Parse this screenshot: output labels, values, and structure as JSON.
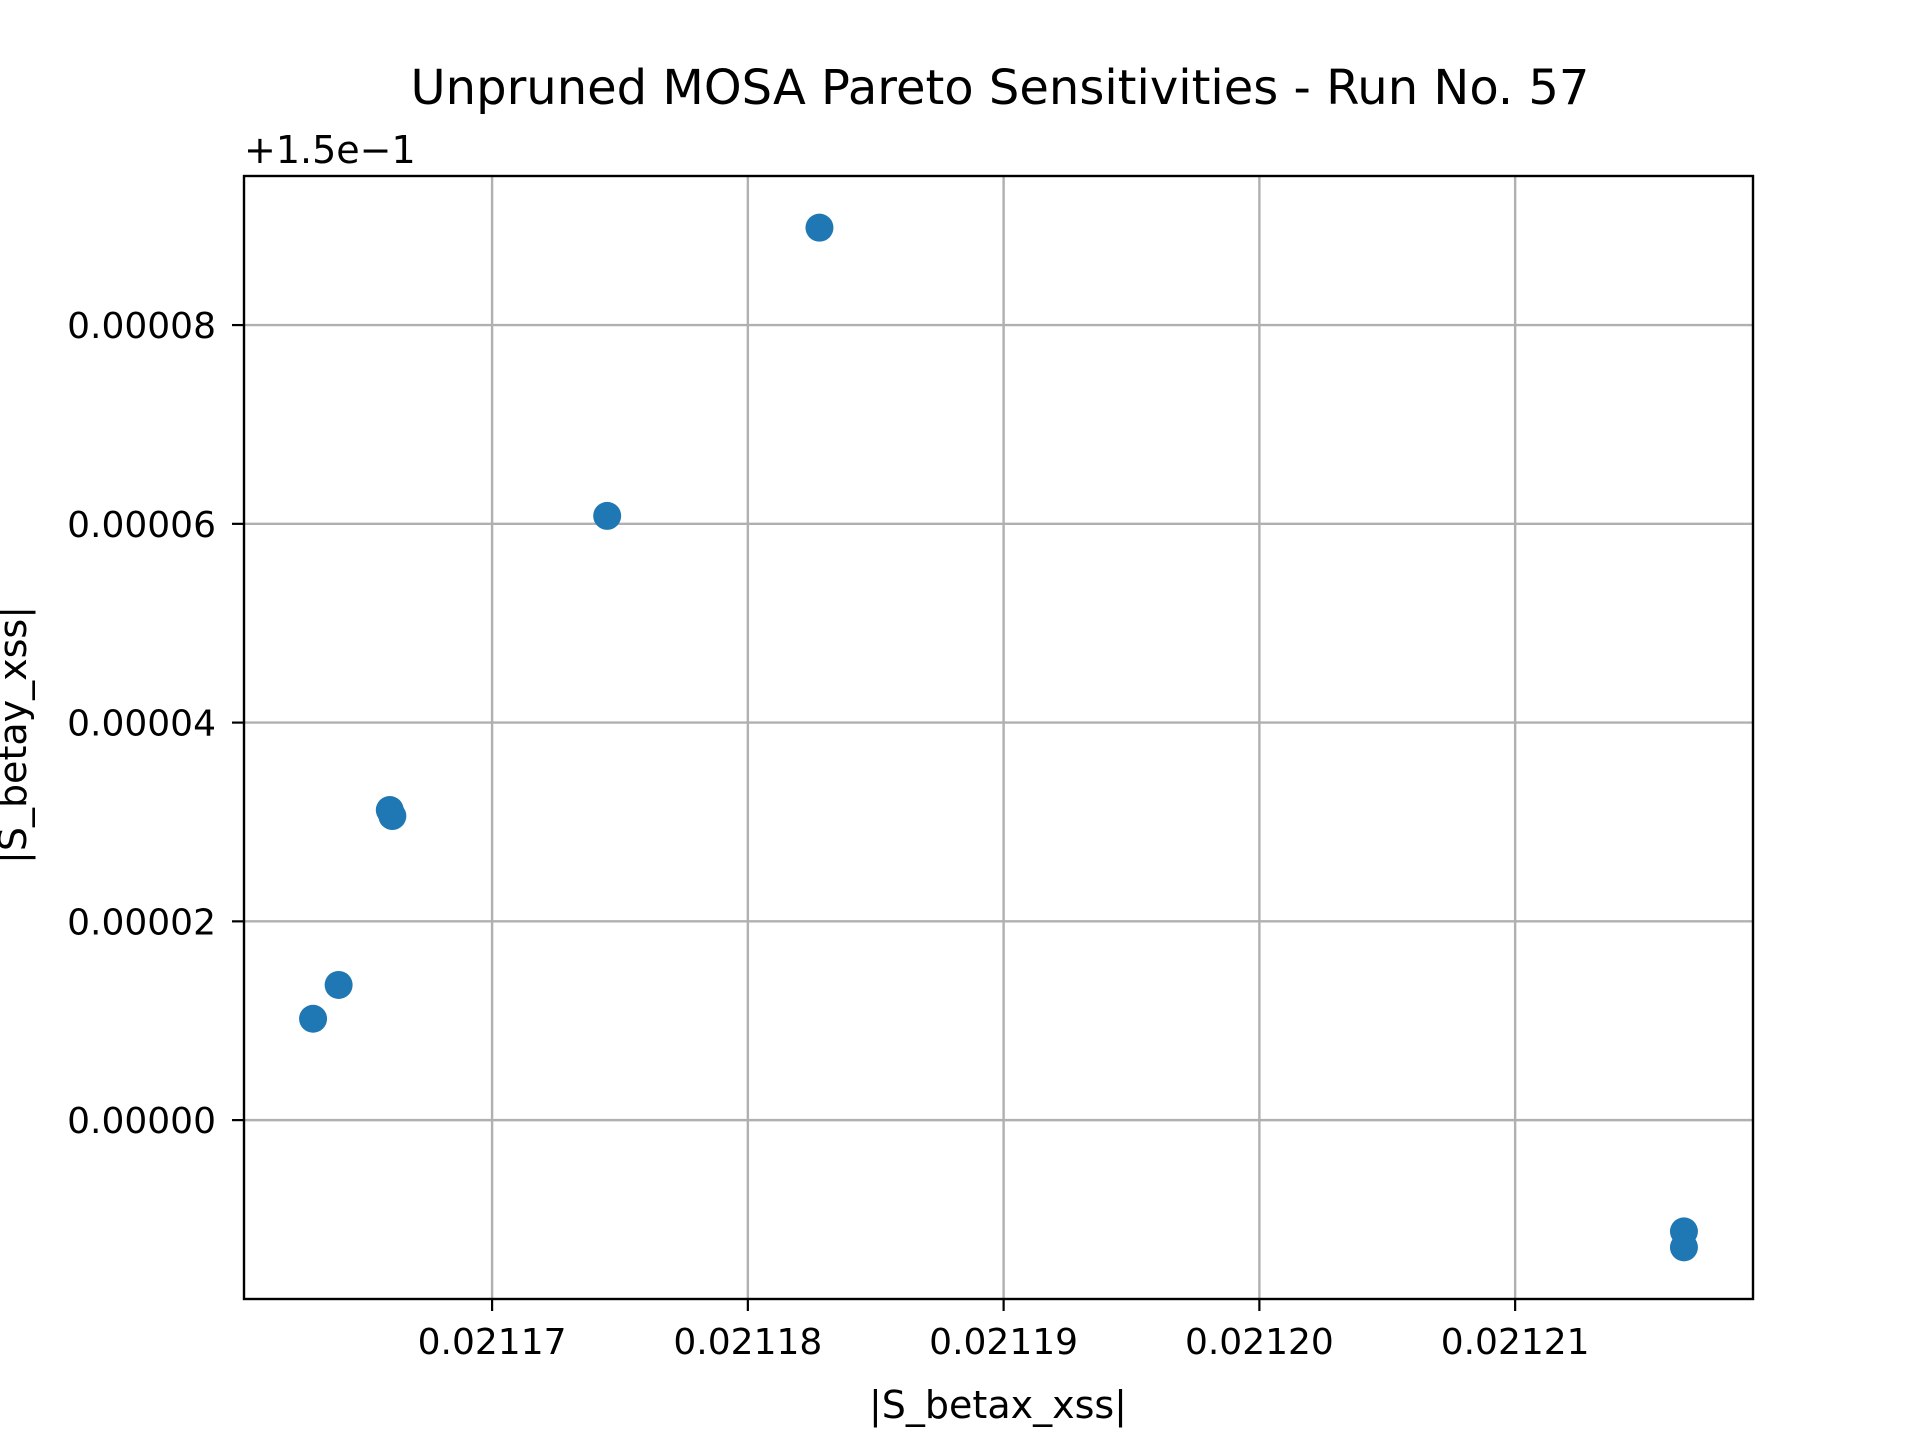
{
  "chart_data": {
    "type": "scatter",
    "title": "Unpruned MOSA Pareto Sensitivities - Run No. 57",
    "xlabel": "|S_betax_xss|",
    "ylabel": "|S_betay_xss|",
    "y_offset_label": "+1.5e−1",
    "xlim": [
      0.0211603,
      0.0212193
    ],
    "ylim": [
      -1.8e-05,
      9.5e-05
    ],
    "grid": true,
    "color": "#1f77b4",
    "x_ticks": [
      0.02117,
      0.02118,
      0.02119,
      0.0212,
      0.02121
    ],
    "x_tick_labels": [
      "0.02117",
      "0.02118",
      "0.02119",
      "0.02120",
      "0.02121"
    ],
    "y_ticks": [
      0.0,
      2e-05,
      4e-05,
      6e-05,
      8e-05
    ],
    "y_tick_labels": [
      "0.00000",
      "0.00002",
      "0.00004",
      "0.00006",
      "0.00008"
    ],
    "points": [
      {
        "x": 0.021163,
        "y": 1.02e-05
      },
      {
        "x": 0.021164,
        "y": 1.36e-05
      },
      {
        "x": 0.021166,
        "y": 3.12e-05
      },
      {
        "x": 0.0211661,
        "y": 3.06e-05
      },
      {
        "x": 0.0211745,
        "y": 6.08e-05
      },
      {
        "x": 0.0211828,
        "y": 8.98e-05
      },
      {
        "x": 0.0212166,
        "y": -1.12e-05
      },
      {
        "x": 0.0212166,
        "y": -1.28e-05
      }
    ]
  }
}
